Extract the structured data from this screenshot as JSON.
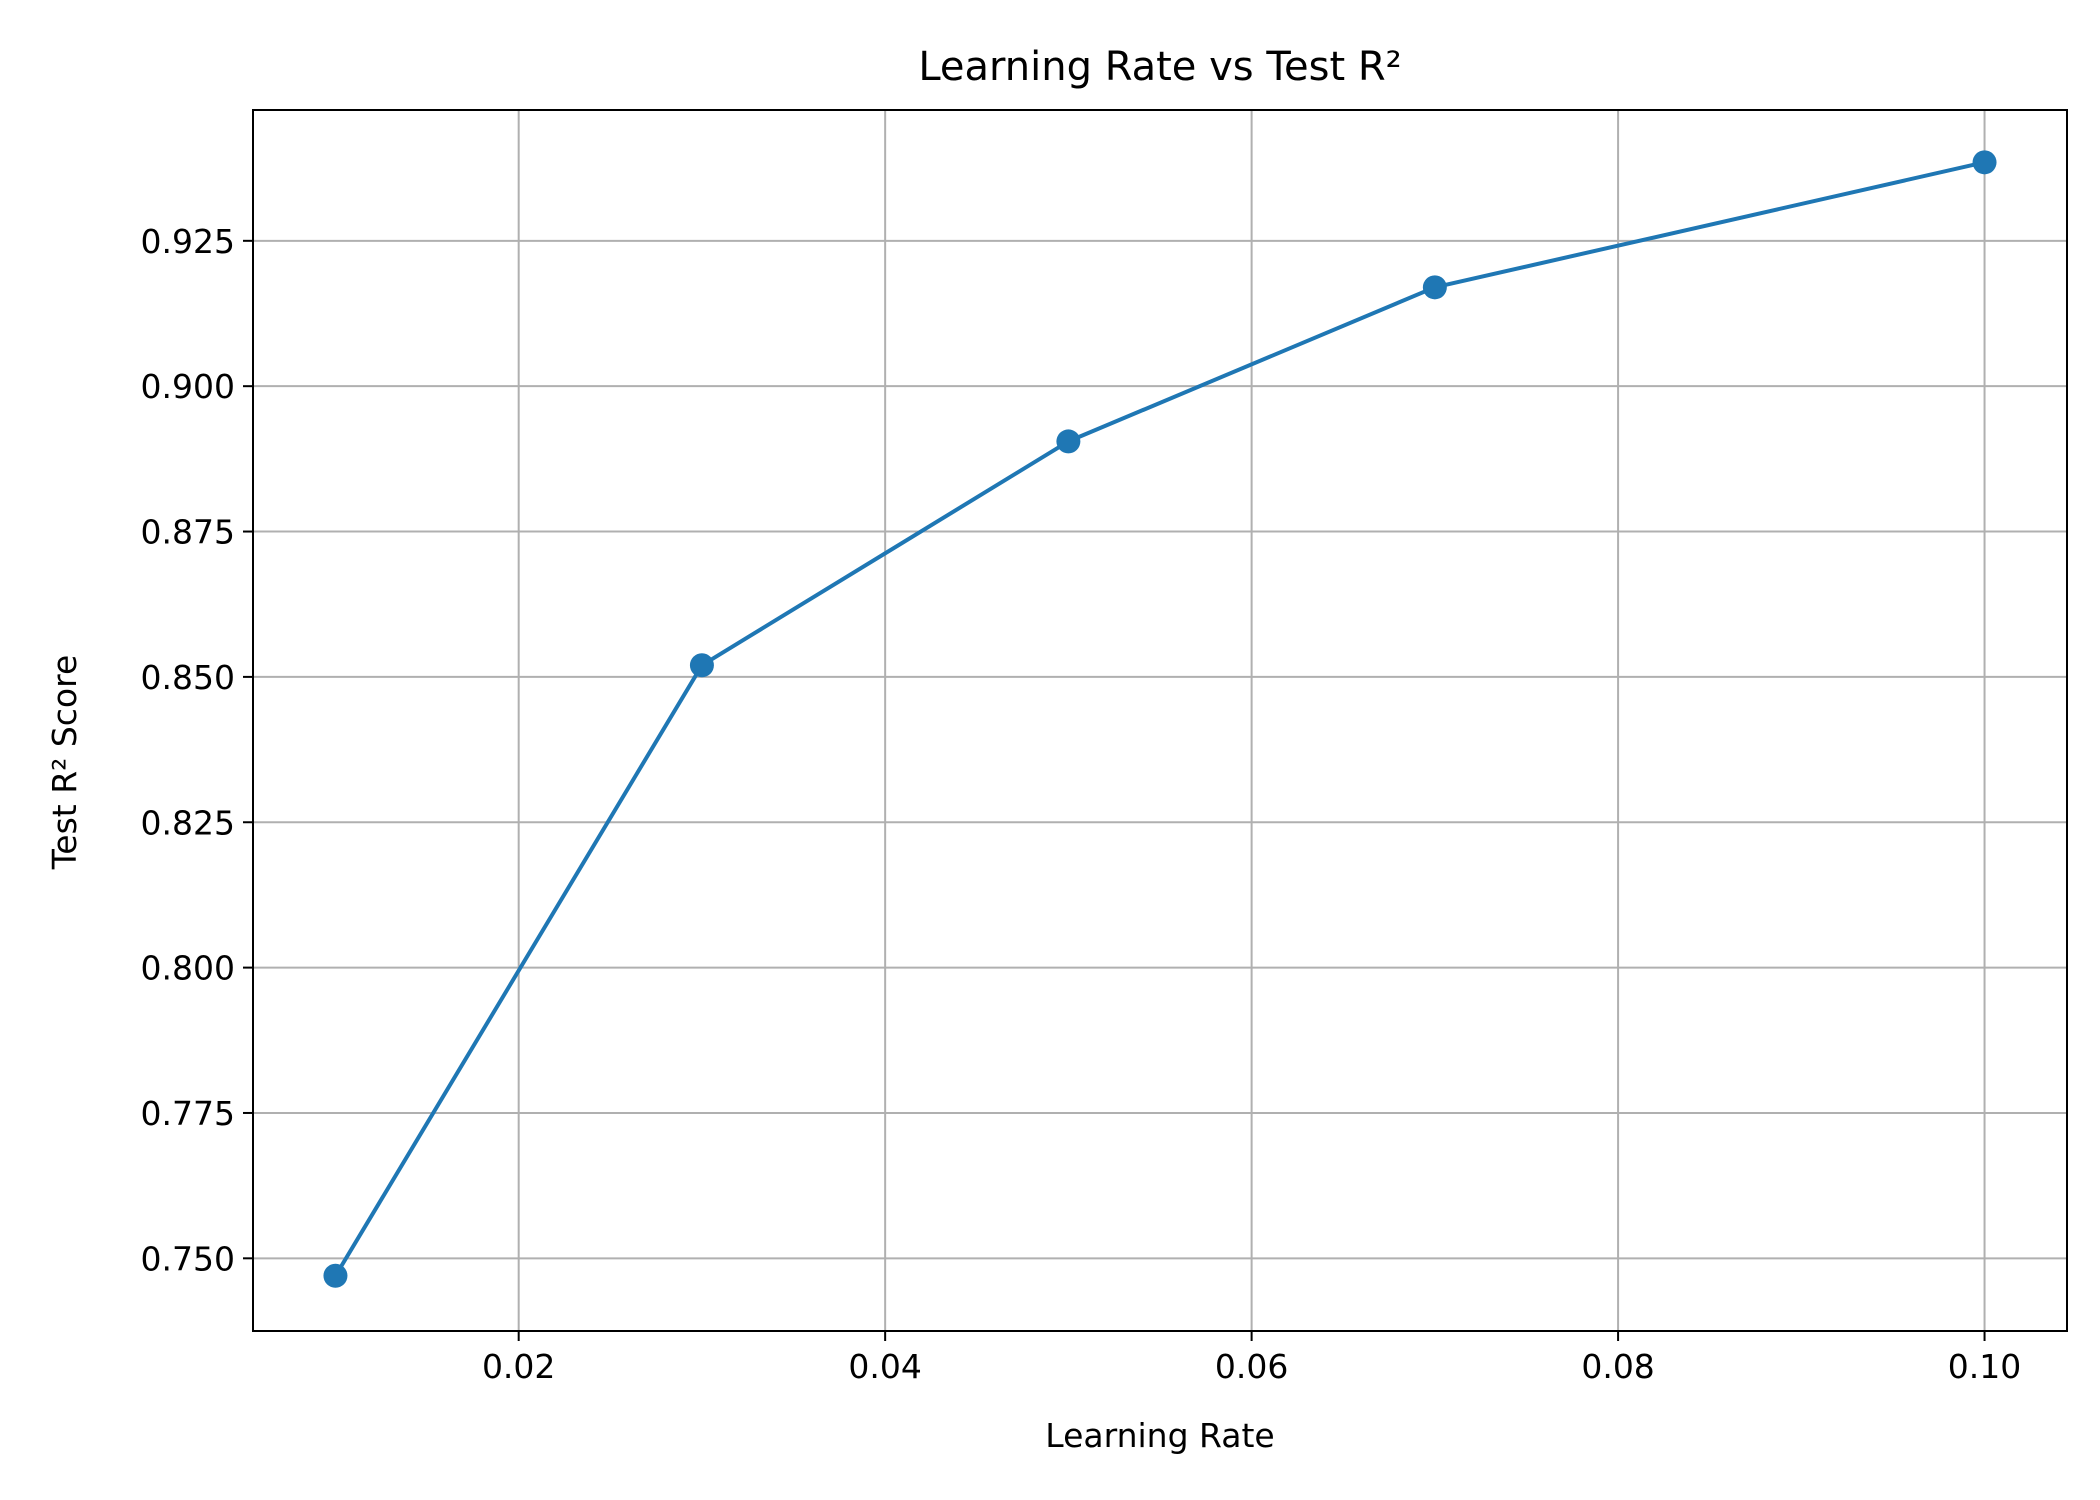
{
  "chart_data": {
    "type": "line",
    "title": "Learning Rate vs Test R²",
    "xlabel": "Learning Rate",
    "ylabel": "Test R² Score",
    "x": [
      0.01,
      0.03,
      0.05,
      0.07,
      0.1
    ],
    "series": [
      {
        "values": [
          0.747,
          0.852,
          0.8905,
          0.917,
          0.9385
        ],
        "color": "#1f77b4",
        "marker": "circle"
      }
    ],
    "xlim": [
      0.0055,
      0.1045
    ],
    "ylim": [
      0.7375,
      0.9475
    ],
    "xticks": [
      0.02,
      0.04,
      0.06,
      0.08,
      0.1
    ],
    "xtick_labels": [
      "0.02",
      "0.04",
      "0.06",
      "0.08",
      "0.10"
    ],
    "yticks": [
      0.75,
      0.775,
      0.8,
      0.825,
      0.85,
      0.875,
      0.9,
      0.925
    ],
    "ytick_labels": [
      "0.750",
      "0.775",
      "0.800",
      "0.825",
      "0.850",
      "0.875",
      "0.900",
      "0.925"
    ],
    "grid": true,
    "legend": "none"
  }
}
